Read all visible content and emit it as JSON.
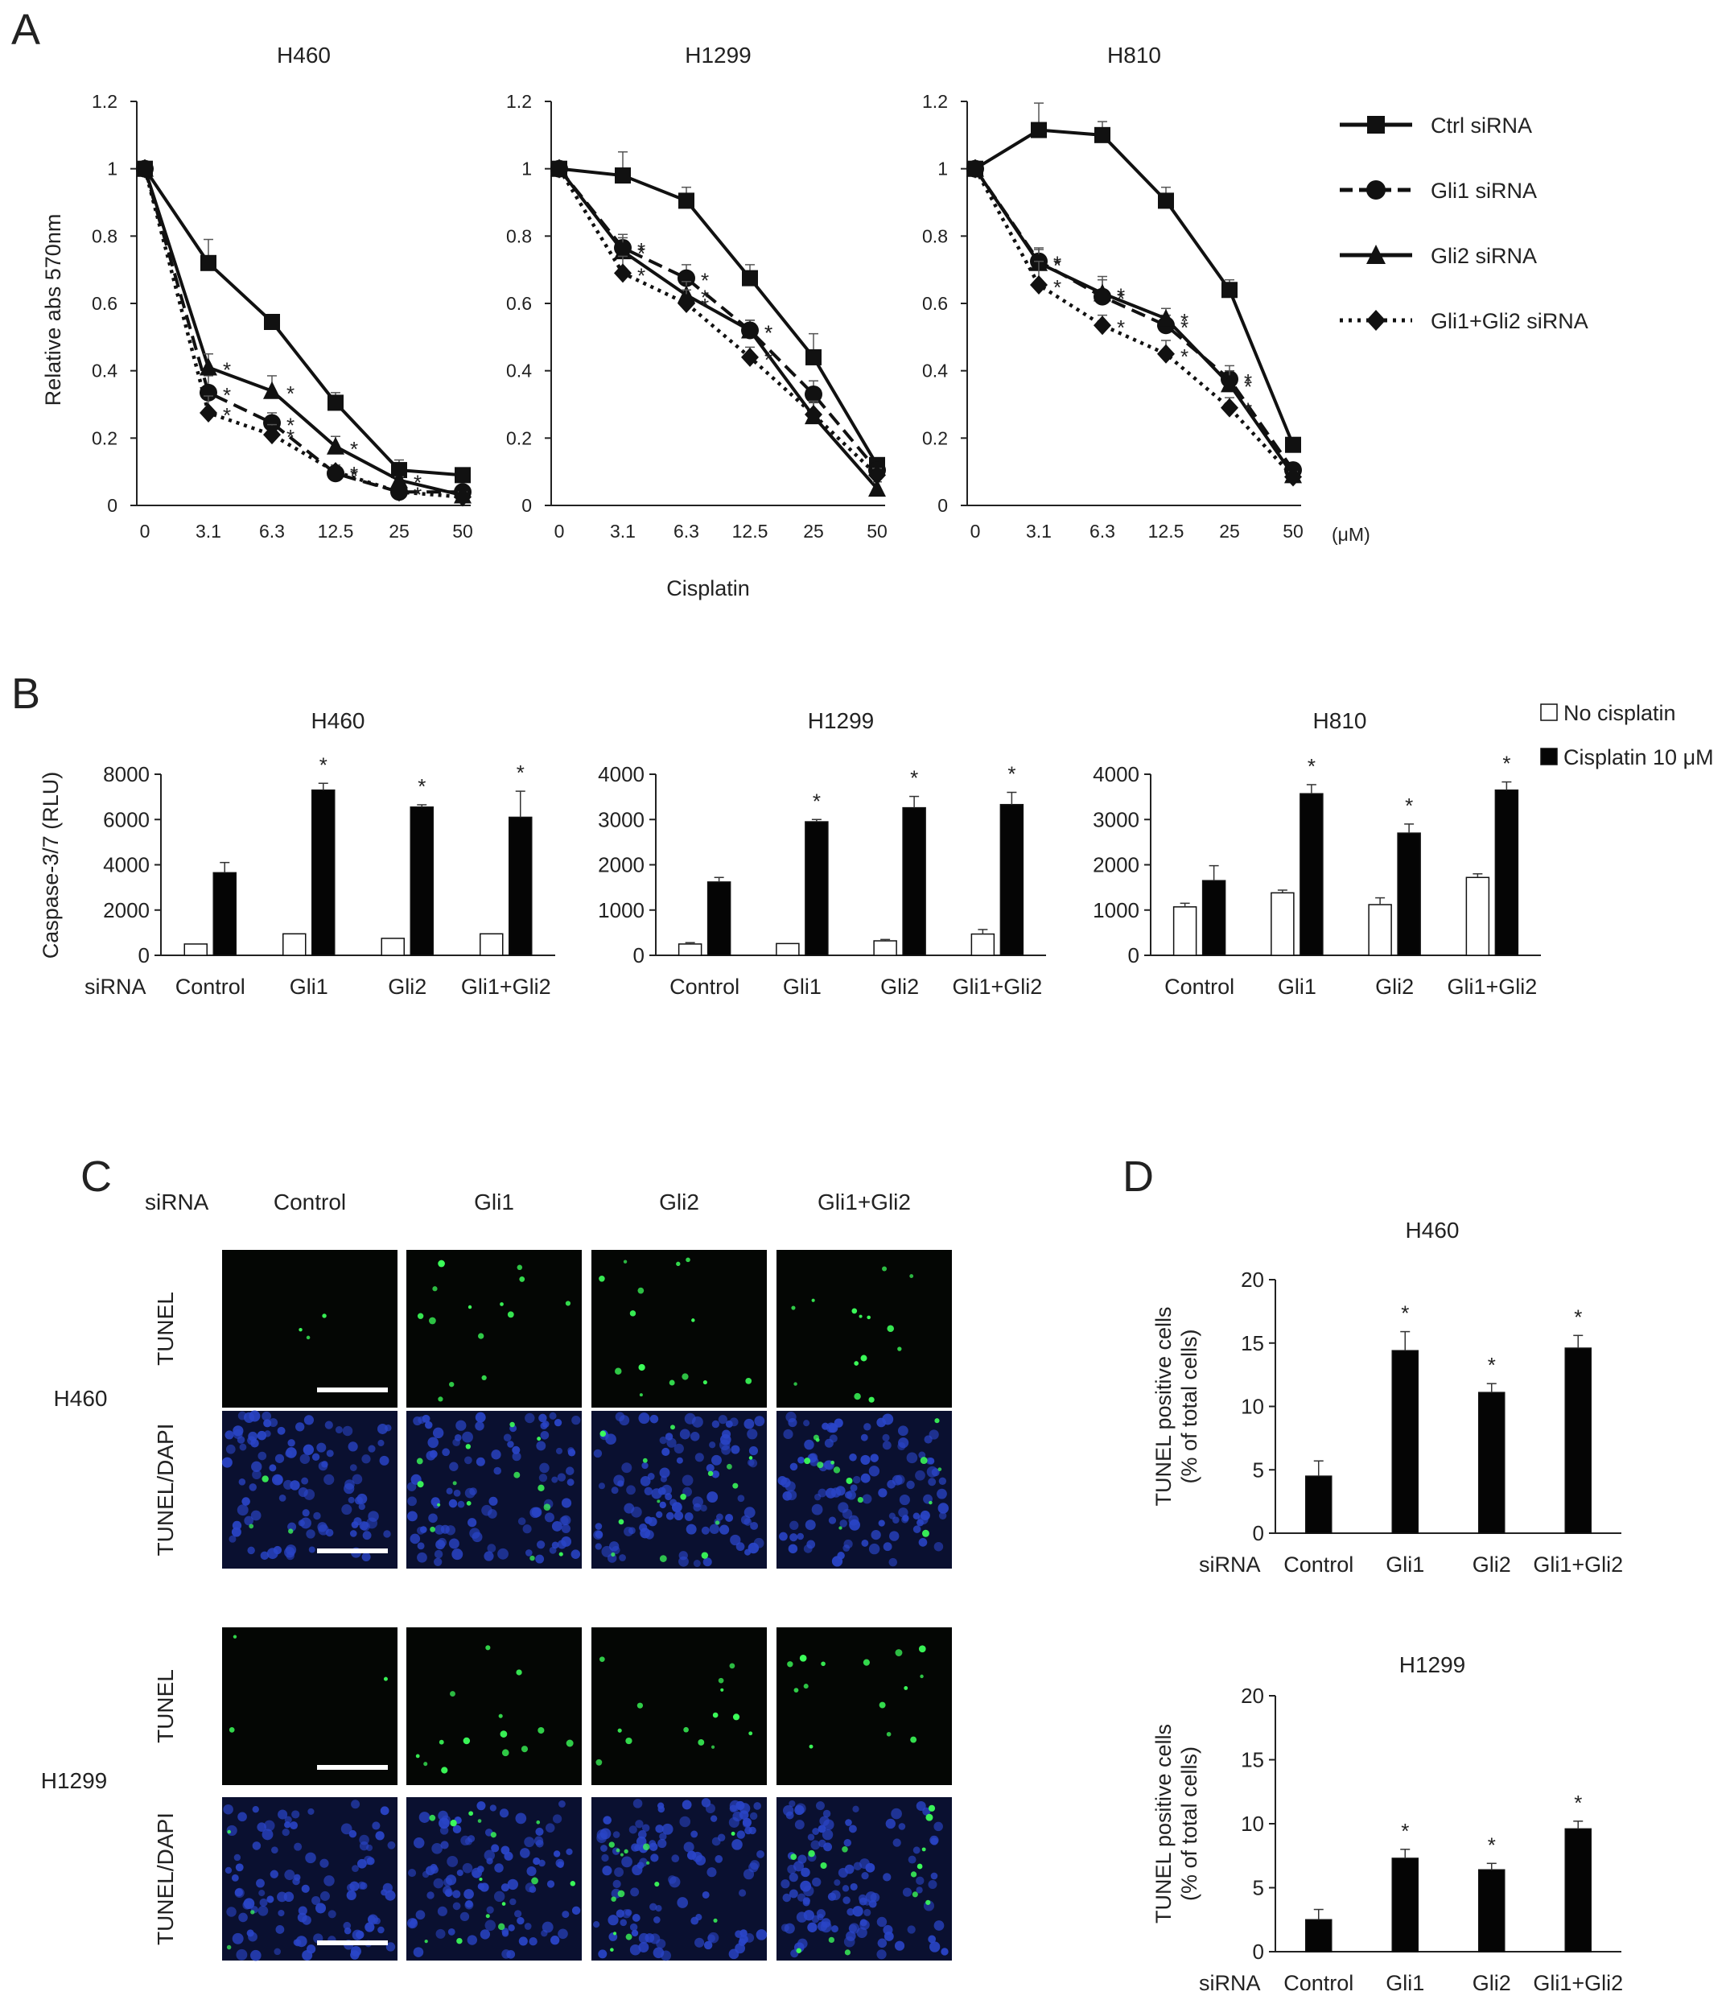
{
  "panels": {
    "A": "A",
    "B": "B",
    "C": "C",
    "D": "D"
  },
  "chart_data": [
    {
      "id": "A-H460",
      "type": "line",
      "title": "H460",
      "ylabel": "Relative abs 570nm",
      "xlabel": "",
      "ylim": [
        0,
        1.2
      ],
      "yticks": [
        "0",
        "0.2",
        "0.4",
        "0.6",
        "0.8",
        "1",
        "1.2"
      ],
      "categories": [
        "0",
        "3.1",
        "6.3",
        "12.5",
        "25",
        "50"
      ],
      "series": [
        {
          "name": "Ctrl siRNA",
          "values": [
            1,
            0.72,
            0.545,
            0.305,
            0.105,
            0.09
          ],
          "errors": [
            0,
            0.07,
            0.02,
            0.03,
            0.03,
            0.01
          ]
        },
        {
          "name": "Gli1 siRNA",
          "values": [
            1,
            0.335,
            0.245,
            0.095,
            0.04,
            0.04
          ],
          "errors": [
            0,
            0.05,
            0.03,
            0.02,
            0.01,
            0.01
          ]
        },
        {
          "name": "Gli2 siRNA",
          "values": [
            1,
            0.41,
            0.34,
            0.175,
            0.075,
            0.03
          ],
          "errors": [
            0,
            0.04,
            0.045,
            0.03,
            0.01,
            0.01
          ]
        },
        {
          "name": "Gli1+Gli2 siRNA",
          "values": [
            1,
            0.275,
            0.21,
            0.1,
            0.04,
            0.025
          ],
          "errors": [
            0,
            0.05,
            0.03,
            0.02,
            0.01,
            0.01
          ]
        }
      ],
      "significance": [
        "",
        "*",
        "*",
        "*",
        "*",
        ""
      ]
    },
    {
      "id": "A-H1299",
      "type": "line",
      "title": "H1299",
      "ylabel": "",
      "xlabel": "Cisplatin",
      "ylim": [
        0,
        1.2
      ],
      "yticks": [
        "0",
        "0.2",
        "0.4",
        "0.6",
        "0.8",
        "1",
        "1.2"
      ],
      "categories": [
        "0",
        "3.1",
        "6.3",
        "12.5",
        "25",
        "50"
      ],
      "series": [
        {
          "name": "Ctrl siRNA",
          "values": [
            1,
            0.98,
            0.905,
            0.675,
            0.44,
            0.12
          ],
          "errors": [
            0,
            0.07,
            0.04,
            0.04,
            0.07,
            0.02
          ]
        },
        {
          "name": "Gli1 siRNA",
          "values": [
            1,
            0.765,
            0.675,
            0.52,
            0.33,
            0.105
          ],
          "errors": [
            0,
            0.04,
            0.04,
            0.03,
            0.04,
            0.02
          ]
        },
        {
          "name": "Gli2 siRNA",
          "values": [
            1,
            0.755,
            0.625,
            0.52,
            0.265,
            0.05
          ],
          "errors": [
            0,
            0.04,
            0.04,
            0.03,
            0.04,
            0.02
          ]
        },
        {
          "name": "Gli1+Gli2 siRNA",
          "values": [
            1,
            0.69,
            0.6,
            0.44,
            0.27,
            0.09
          ],
          "errors": [
            0,
            0.05,
            0.04,
            0.03,
            0.04,
            0.02
          ]
        }
      ],
      "significance": [
        "",
        "*",
        "*",
        "*",
        "",
        ""
      ]
    },
    {
      "id": "A-H810",
      "type": "line",
      "title": "H810",
      "ylabel": "",
      "xlabel": "",
      "xunit": "(μM)",
      "ylim": [
        0,
        1.2
      ],
      "yticks": [
        "0",
        "0.2",
        "0.4",
        "0.6",
        "0.8",
        "1",
        "1.2"
      ],
      "categories": [
        "0",
        "3.1",
        "6.3",
        "12.5",
        "25",
        "50"
      ],
      "series": [
        {
          "name": "Ctrl siRNA",
          "values": [
            1,
            1.115,
            1.1,
            0.905,
            0.64,
            0.18
          ],
          "errors": [
            0,
            0.08,
            0.04,
            0.04,
            0.03,
            0.01
          ]
        },
        {
          "name": "Gli1 siRNA",
          "values": [
            1,
            0.725,
            0.62,
            0.535,
            0.375,
            0.105
          ],
          "errors": [
            0,
            0.04,
            0.05,
            0.03,
            0.04,
            0.01
          ]
        },
        {
          "name": "Gli2 siRNA",
          "values": [
            1,
            0.72,
            0.63,
            0.555,
            0.36,
            0.09
          ],
          "errors": [
            0,
            0.04,
            0.05,
            0.03,
            0.04,
            0.01
          ]
        },
        {
          "name": "Gli1+Gli2 siRNA",
          "values": [
            1,
            0.655,
            0.535,
            0.45,
            0.29,
            0.085
          ],
          "errors": [
            0,
            0.07,
            0.03,
            0.04,
            0.03,
            0.01
          ]
        }
      ],
      "significance": [
        "",
        "*",
        "*",
        "*",
        "*",
        ""
      ]
    },
    {
      "id": "B-H460",
      "type": "bar",
      "title": "H460",
      "ylabel": "Caspase-3/7 (RLU)",
      "ylim": [
        0,
        8000
      ],
      "yticks": [
        "0",
        "2000",
        "4000",
        "6000",
        "8000"
      ],
      "x_prefix": "siRNA",
      "categories": [
        "Control",
        "Gli1",
        "Gli2",
        "Gli1+Gli2"
      ],
      "series": [
        {
          "name": "No cisplatin",
          "values": [
            500,
            950,
            750,
            950
          ],
          "errors": [
            0,
            0,
            0,
            0
          ]
        },
        {
          "name": "Cisplatin 10 μM",
          "values": [
            3650,
            7300,
            6550,
            6100
          ],
          "errors": [
            450,
            300,
            100,
            1150
          ]
        }
      ],
      "significance": [
        "",
        "*",
        "*",
        "*"
      ]
    },
    {
      "id": "B-H1299",
      "type": "bar",
      "title": "H1299",
      "ylabel": "",
      "ylim": [
        0,
        4000
      ],
      "yticks": [
        "0",
        "1000",
        "2000",
        "3000",
        "4000"
      ],
      "categories": [
        "Control",
        "Gli1",
        "Gli2",
        "Gli1+Gli2"
      ],
      "series": [
        {
          "name": "No cisplatin",
          "values": [
            250,
            260,
            320,
            470
          ],
          "errors": [
            30,
            0,
            30,
            100
          ]
        },
        {
          "name": "Cisplatin 10 μM",
          "values": [
            1620,
            2950,
            3260,
            3330
          ],
          "errors": [
            100,
            50,
            250,
            270
          ]
        }
      ],
      "significance": [
        "",
        "*",
        "*",
        "*"
      ]
    },
    {
      "id": "B-H810",
      "type": "bar",
      "title": "H810",
      "ylabel": "",
      "ylim": [
        0,
        4000
      ],
      "yticks": [
        "0",
        "1000",
        "2000",
        "3000",
        "4000"
      ],
      "categories": [
        "Control",
        "Gli1",
        "Gli2",
        "Gli1+Gli2"
      ],
      "series": [
        {
          "name": "No cisplatin",
          "values": [
            1070,
            1380,
            1120,
            1720
          ],
          "errors": [
            80,
            60,
            150,
            80
          ]
        },
        {
          "name": "Cisplatin 10 μM",
          "values": [
            1650,
            3570,
            2700,
            3650
          ],
          "errors": [
            330,
            200,
            200,
            180
          ]
        }
      ],
      "significance": [
        "",
        "*",
        "*",
        "*"
      ]
    },
    {
      "id": "D-H460",
      "type": "bar",
      "title": "H460",
      "ylabel": "TUNEL positive cells\n(% of total cells)",
      "ylim": [
        0,
        20
      ],
      "yticks": [
        "0",
        "5",
        "10",
        "15",
        "20"
      ],
      "x_prefix": "siRNA",
      "categories": [
        "Control",
        "Gli1",
        "Gli2",
        "Gli1+Gli2"
      ],
      "series": [
        {
          "name": "",
          "values": [
            4.5,
            14.4,
            11.1,
            14.6
          ],
          "errors": [
            1.2,
            1.5,
            0.7,
            1.0
          ]
        }
      ],
      "significance": [
        "",
        "*",
        "*",
        "*"
      ]
    },
    {
      "id": "D-H1299",
      "type": "bar",
      "title": "H1299",
      "ylabel": "TUNEL positive cells\n(% of total cells)",
      "ylim": [
        0,
        20
      ],
      "yticks": [
        "0",
        "5",
        "10",
        "15",
        "20"
      ],
      "x_prefix": "siRNA",
      "categories": [
        "Control",
        "Gli1",
        "Gli2",
        "Gli1+Gli2"
      ],
      "series": [
        {
          "name": "",
          "values": [
            2.5,
            7.3,
            6.4,
            9.6
          ],
          "errors": [
            0.8,
            0.7,
            0.5,
            0.6
          ]
        }
      ],
      "significance": [
        "",
        "*",
        "*",
        "*"
      ]
    }
  ],
  "legend_A": [
    "Ctrl siRNA",
    "Gli1 siRNA",
    "Gli2 siRNA",
    "Gli1+Gli2 siRNA"
  ],
  "legend_B": [
    "No cisplatin",
    "Cisplatin 10 μM"
  ],
  "panel_C": {
    "header_label": "siRNA",
    "columns": [
      "Control",
      "Gli1",
      "Gli2",
      "Gli1+Gli2"
    ],
    "row_labels": [
      "TUNEL",
      "TUNEL/DAPI",
      "TUNEL",
      "TUNEL/DAPI"
    ],
    "group_labels": [
      "H460",
      "H1299"
    ],
    "colors": {
      "tunel_bg": "#040604",
      "dapi_bg": "#0a1030",
      "tunel_dot": "#3cff5a",
      "nucleus": "#2a45c8",
      "scalebar": "#ffffff"
    }
  }
}
